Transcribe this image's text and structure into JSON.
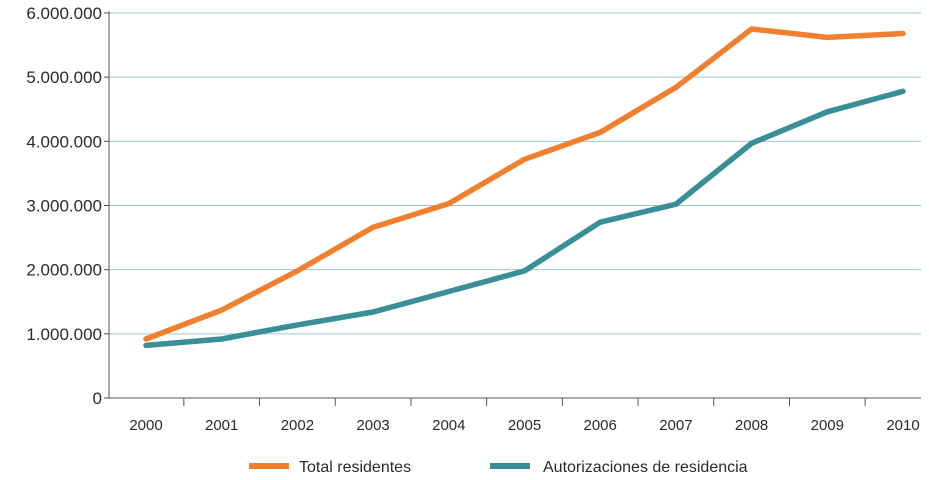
{
  "chart_data": {
    "type": "line",
    "title": "",
    "xlabel": "",
    "ylabel": "",
    "categories": [
      "2000",
      "2001",
      "2002",
      "2003",
      "2004",
      "2005",
      "2006",
      "2007",
      "2008",
      "2009",
      "2010"
    ],
    "ylim": [
      0,
      6000000
    ],
    "yticks": [
      0,
      1000000,
      2000000,
      3000000,
      4000000,
      5000000,
      6000000
    ],
    "ytick_labels": [
      "0",
      "1.000.000",
      "2.000.000",
      "3.000.000",
      "4.000.000",
      "5.000.000",
      "6.000.000"
    ],
    "grid": true,
    "legend_position": "bottom",
    "series": [
      {
        "name": "Total residentes",
        "color": "#f07f2e",
        "values": [
          920000,
          1370000,
          1980000,
          2660000,
          3030000,
          3720000,
          4140000,
          4840000,
          5750000,
          5620000,
          5680000
        ]
      },
      {
        "name": "Autorizaciones de residencia",
        "color": "#3a8f96",
        "values": [
          820000,
          920000,
          1140000,
          1340000,
          1660000,
          1980000,
          2740000,
          3020000,
          3970000,
          4460000,
          4780000
        ]
      }
    ]
  }
}
